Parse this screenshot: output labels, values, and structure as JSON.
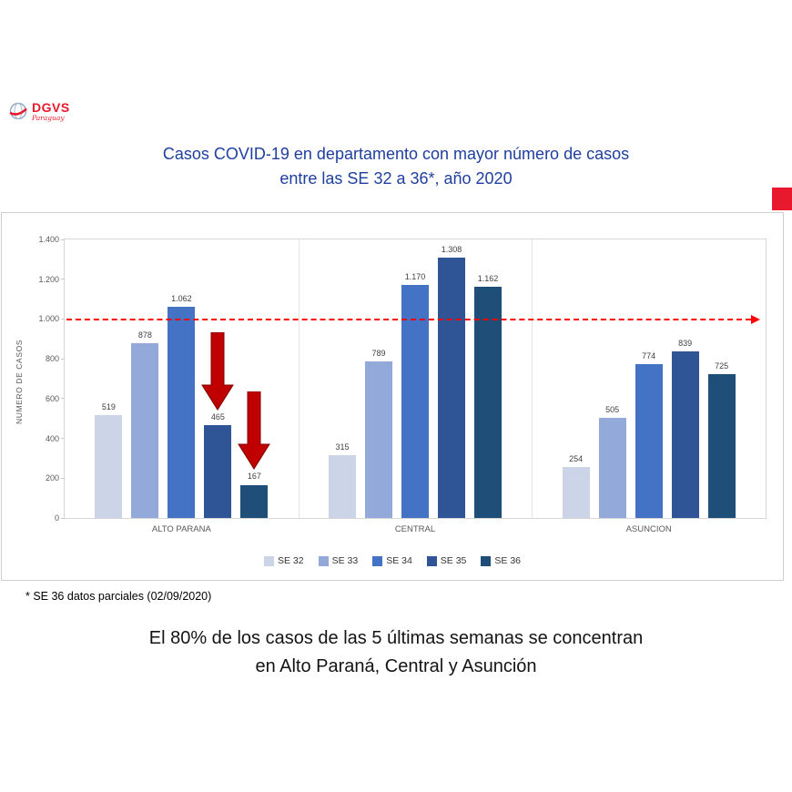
{
  "logo": {
    "text": "DGVS",
    "subtext": "Paraguay"
  },
  "title": {
    "line1": "Casos COVID-19 en departamento con mayor número de casos",
    "line2": "entre las SE 32 a 36*, año 2020"
  },
  "chart_data": {
    "type": "bar",
    "title": "Casos COVID-19 en departamento con mayor número de casos entre las SE 32 a 36, año 2020",
    "categories": [
      "ALTO PARANA",
      "CENTRAL",
      "ASUNCION"
    ],
    "series": [
      {
        "name": "SE 32",
        "color": "#ccd4e8",
        "values": [
          519,
          315,
          254
        ],
        "labels": [
          "519",
          "315",
          "254"
        ]
      },
      {
        "name": "SE 33",
        "color": "#93a9d9",
        "values": [
          878,
          789,
          505
        ],
        "labels": [
          "878",
          "789",
          "505"
        ]
      },
      {
        "name": "SE 34",
        "color": "#4472c4",
        "values": [
          1062,
          1170,
          774
        ],
        "labels": [
          "1.062",
          "1.170",
          "774"
        ]
      },
      {
        "name": "SE 35",
        "color": "#2f5597",
        "values": [
          465,
          1308,
          839
        ],
        "labels": [
          "465",
          "1.308",
          "839"
        ]
      },
      {
        "name": "SE 36",
        "color": "#1f4e79",
        "values": [
          167,
          1162,
          725
        ],
        "labels": [
          "167",
          "1.162",
          "725"
        ]
      }
    ],
    "xlabel": "",
    "ylabel": "NUMERO DE CASOS",
    "ylim": [
      0,
      1400
    ],
    "ytick_labels": [
      "0",
      "200",
      "400",
      "600",
      "800",
      "1.000",
      "1.200",
      "1.400"
    ],
    "grid": false,
    "legend_position": "bottom",
    "reference_line": {
      "value": 1000,
      "color": "#ff0000",
      "style": "dashed-arrow-right"
    },
    "annotations": [
      {
        "type": "red-down-arrow",
        "category_index": 0,
        "series_index": 3,
        "points_at_value": 465
      },
      {
        "type": "red-down-arrow",
        "category_index": 0,
        "series_index": 4,
        "points_at_value": 167
      }
    ]
  },
  "footnote": "* SE 36 datos parciales (02/09/2020)",
  "message": {
    "line1": "El 80% de los casos de las 5 últimas semanas se concentran",
    "line2": "en Alto Paraná, Central y Asunción"
  },
  "colors": {
    "title_blue": "#1e3f9e",
    "accent_red": "#e8192c",
    "arrow_red": "#c00000"
  }
}
